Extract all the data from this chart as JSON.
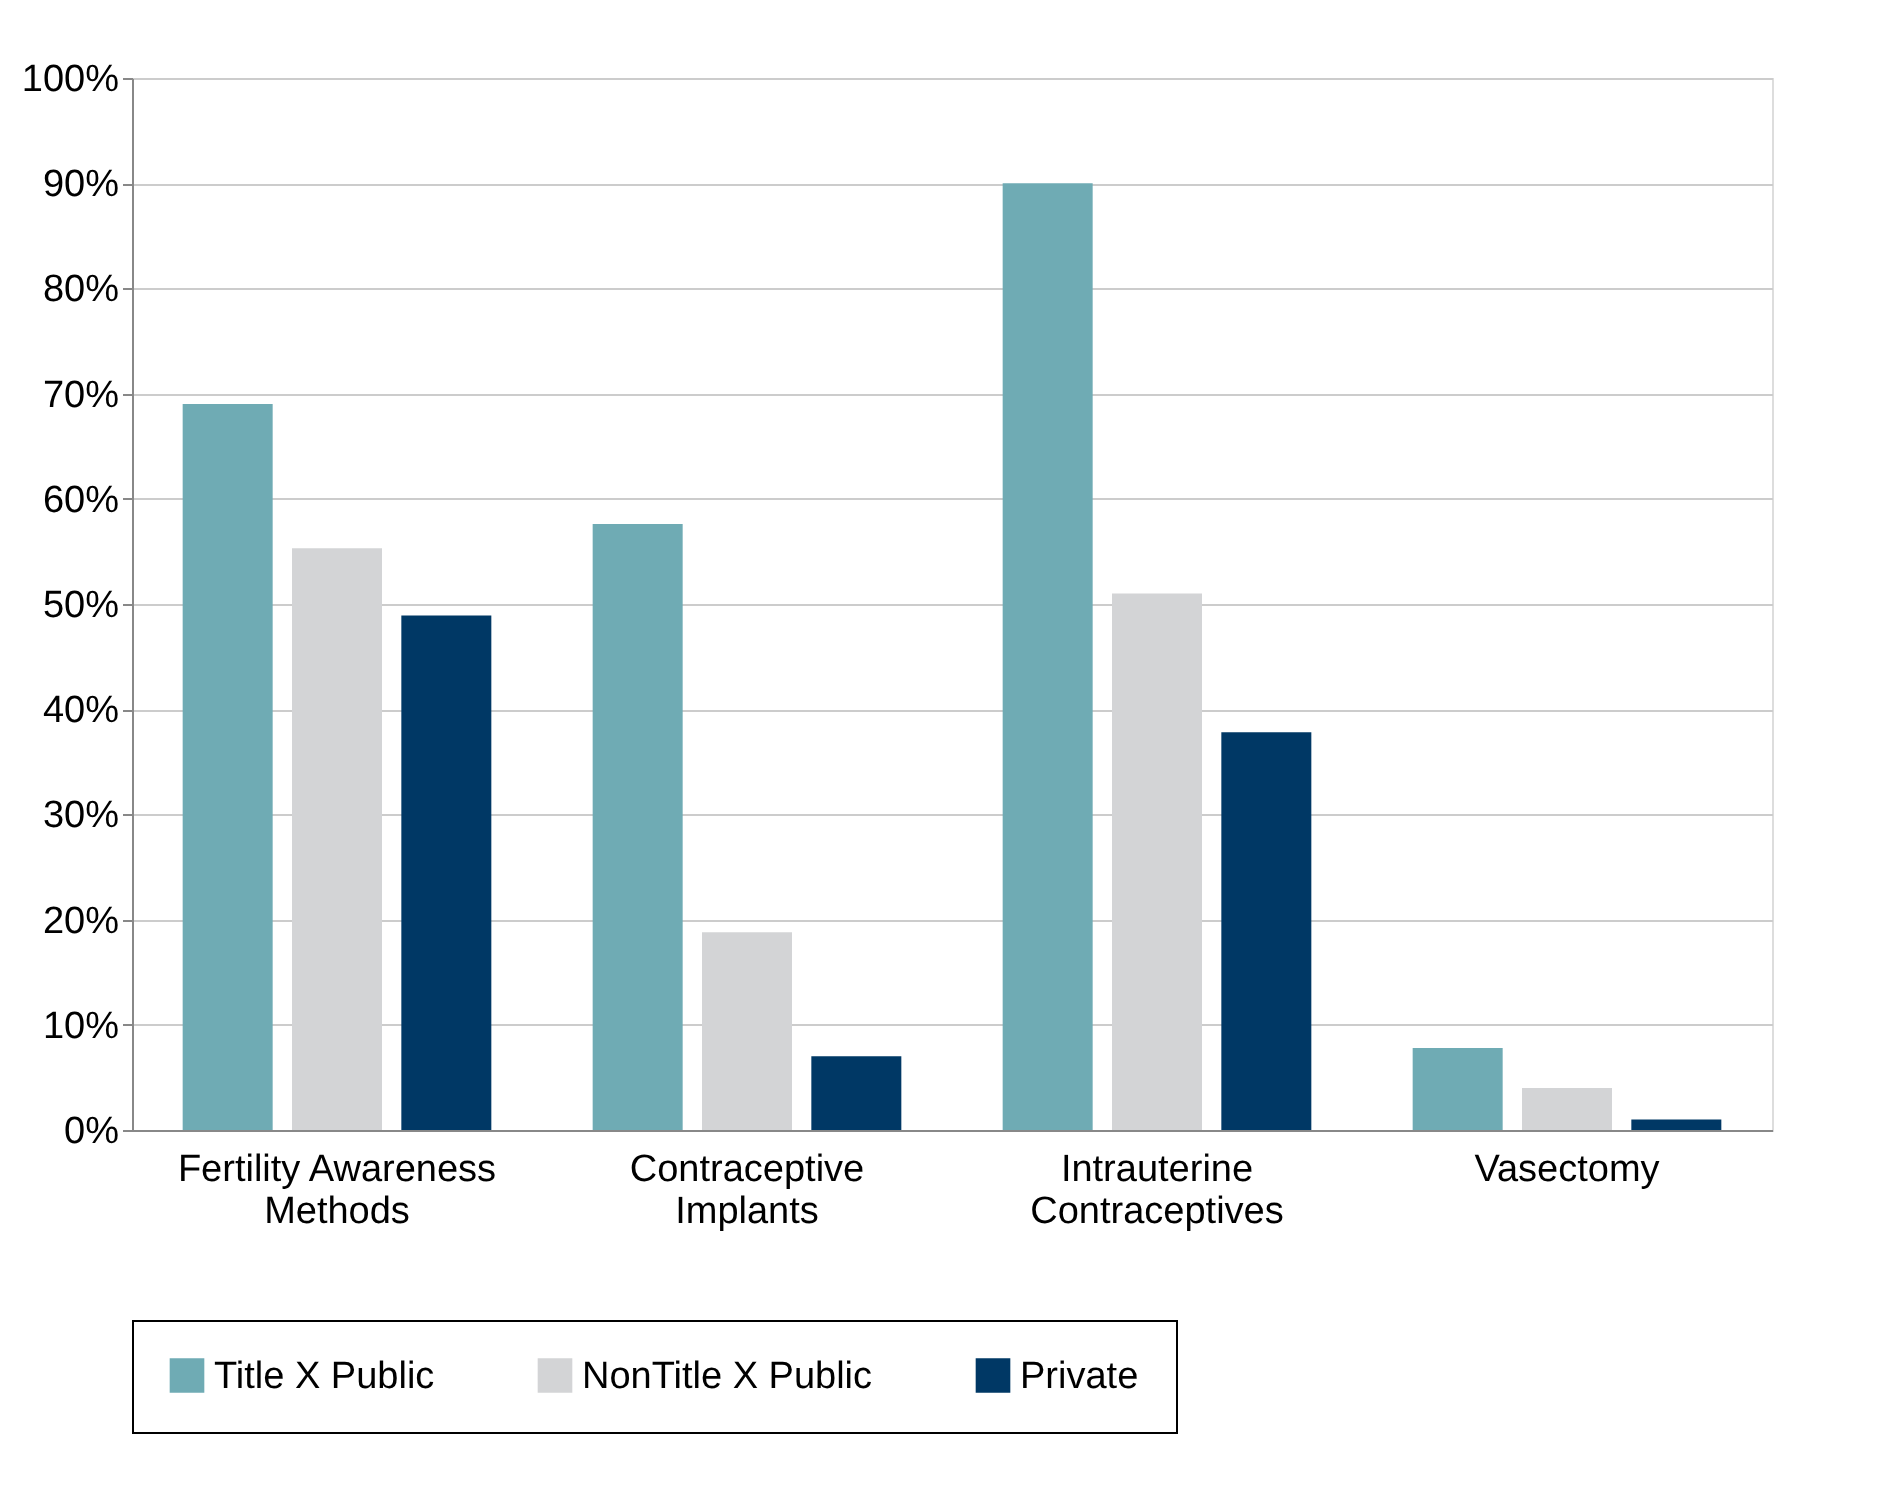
{
  "chart_data": {
    "type": "bar",
    "categories": [
      "Fertility Awareness Methods",
      "Contraceptive Implants",
      "Intrauterine Contraceptives",
      "Vasectomy"
    ],
    "series": [
      {
        "name": "Title X Public",
        "color": "#6fabb4",
        "values": [
          69.0,
          57.6,
          90.0,
          7.8
        ]
      },
      {
        "name": "NonTitle X Public",
        "color": "#d3d4d6",
        "values": [
          55.3,
          18.8,
          51.0,
          4.0
        ]
      },
      {
        "name": "Private",
        "color": "#003865",
        "values": [
          48.9,
          7.0,
          37.8,
          1.0
        ]
      }
    ],
    "ylim": [
      0,
      100
    ],
    "yticks": [
      {
        "value": 0,
        "label": "0%"
      },
      {
        "value": 10,
        "label": "10%"
      },
      {
        "value": 20,
        "label": "20%"
      },
      {
        "value": 30,
        "label": "30%"
      },
      {
        "value": 40,
        "label": "40%"
      },
      {
        "value": 50,
        "label": "50%"
      },
      {
        "value": 60,
        "label": "60%"
      },
      {
        "value": 70,
        "label": "70%"
      },
      {
        "value": 80,
        "label": "80%"
      },
      {
        "value": 90,
        "label": "90%"
      },
      {
        "value": 100,
        "label": "100%"
      }
    ],
    "grid": "y",
    "legend": "bottom"
  }
}
